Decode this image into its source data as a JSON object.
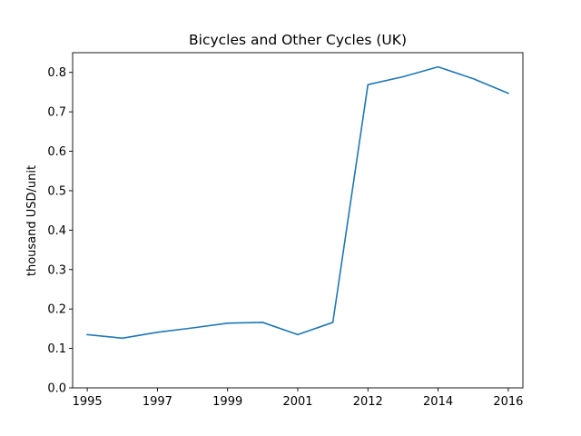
{
  "chart_data": {
    "type": "line",
    "title": "Bicycles and Other Cycles (UK)",
    "xlabel": "",
    "ylabel": "thousand USD/unit",
    "categories": [
      "1995",
      "1996",
      "1997",
      "1998",
      "1999",
      "2000",
      "2001",
      "2002",
      "2012",
      "2013",
      "2014",
      "2015",
      "2016"
    ],
    "x_tick_labels": [
      "1995",
      "1997",
      "1999",
      "2001",
      "2012",
      "2014",
      "2016"
    ],
    "series": [
      {
        "values": [
          0.135,
          0.126,
          0.141,
          0.152,
          0.164,
          0.166,
          0.135,
          0.166,
          0.769,
          0.789,
          0.814,
          0.784,
          0.747
        ],
        "color": "#1f77b4"
      }
    ],
    "ylim": [
      0.0,
      0.85
    ],
    "y_ticks": [
      "0.0",
      "0.1",
      "0.2",
      "0.3",
      "0.4",
      "0.5",
      "0.6",
      "0.7",
      "0.8"
    ],
    "grid": false,
    "legend": false
  }
}
